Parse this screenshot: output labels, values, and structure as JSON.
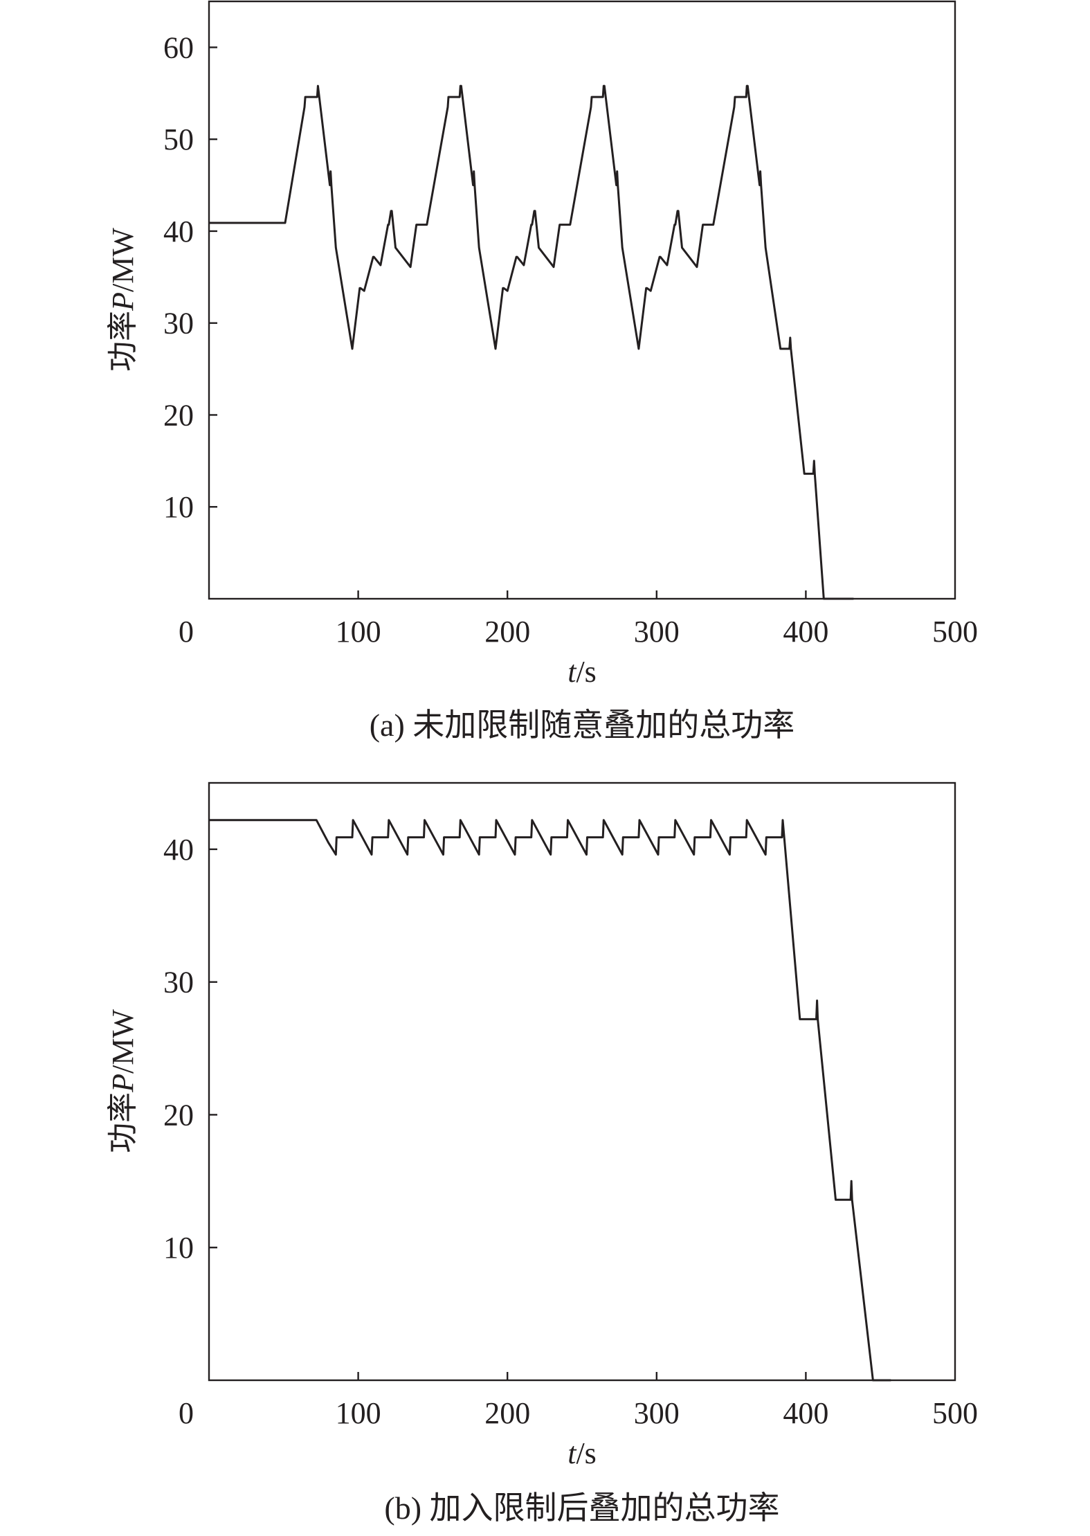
{
  "chart_data": [
    {
      "type": "line",
      "caption": "(a) 未加限制随意叠加的总功率",
      "xlabel_var": "t",
      "xlabel_unit": "/s",
      "ylabel_text": "功率",
      "ylabel_var": "P",
      "ylabel_unit": "/MW",
      "xlim": [
        0,
        500
      ],
      "ylim": [
        0,
        65
      ],
      "xticks": [
        100,
        200,
        300,
        400,
        500
      ],
      "yticks": [
        10,
        20,
        30,
        40,
        50,
        60
      ],
      "origin_label": "0",
      "grid": false,
      "series": [
        {
          "x": [
            0,
            51,
            64,
            64.5,
            72,
            72.5,
            73,
            81,
            81.5,
            82,
            85,
            96,
            101,
            101.5,
            104,
            110,
            110.5,
            115,
            120,
            120.5,
            122,
            122.5,
            125,
            135,
            139,
            139.5,
            146,
            160,
            160.5,
            168,
            168.5,
            169,
            177,
            177.5,
            178,
            181,
            192,
            197,
            197.5,
            200,
            206,
            206.5,
            211,
            216,
            216.5,
            218,
            218.5,
            221,
            231,
            235,
            235.5,
            242,
            256,
            256.5,
            264,
            264.5,
            265,
            273,
            273.5,
            274,
            277,
            288,
            293,
            293.5,
            296,
            302,
            302.5,
            307,
            312,
            312.5,
            314,
            314.5,
            317,
            327,
            331,
            331.5,
            338,
            352,
            352.5,
            360,
            360.5,
            361,
            369,
            369.5,
            370,
            373,
            383,
            389,
            389.5,
            390,
            399,
            405,
            405.5,
            406,
            412,
            422,
            432
          ],
          "y": [
            40.9,
            40.9,
            53.5,
            54.6,
            54.6,
            54.6,
            55.8,
            45,
            46.5,
            45,
            38.2,
            27.2,
            33.8,
            33.8,
            33.5,
            37.2,
            37.2,
            36.3,
            40.7,
            40.7,
            42.2,
            42.2,
            38.2,
            36.1,
            40.7,
            40.7,
            40.7,
            53.5,
            54.6,
            54.6,
            55.8,
            55.8,
            45,
            46.5,
            45,
            38.2,
            27.2,
            33.8,
            33.8,
            33.5,
            37.2,
            37.2,
            36.3,
            40.7,
            40.7,
            42.2,
            42.2,
            38.2,
            36.1,
            40.7,
            40.7,
            40.7,
            53.5,
            54.6,
            54.6,
            55.8,
            55.8,
            45,
            46.5,
            45,
            38.2,
            27.2,
            33.8,
            33.8,
            33.5,
            37.2,
            37.2,
            36.3,
            40.7,
            40.7,
            42.2,
            42.2,
            38.2,
            36.1,
            40.7,
            40.7,
            40.7,
            53.5,
            54.6,
            54.6,
            55.8,
            55.8,
            45,
            46.5,
            45,
            38.2,
            27.2,
            27.2,
            28.4,
            27.2,
            13.6,
            13.6,
            15,
            13.6,
            0,
            0,
            0
          ]
        }
      ]
    },
    {
      "type": "line",
      "caption": "(b) 加入限制后叠加的总功率",
      "xlabel_var": "t",
      "xlabel_unit": "/s",
      "ylabel_text": "功率",
      "ylabel_var": "P",
      "ylabel_unit": "/MW",
      "xlim": [
        0,
        500
      ],
      "ylim": [
        0,
        45
      ],
      "xticks": [
        100,
        200,
        300,
        400,
        500
      ],
      "yticks": [
        10,
        20,
        30,
        40
      ],
      "origin_label": "0",
      "grid": false,
      "series": [
        {
          "x": [
            0,
            72,
            80,
            85,
            85.5,
            96,
            96.5,
            109,
            109.5,
            120,
            120.5,
            133,
            133.5,
            144,
            144.5,
            157,
            157.5,
            168,
            168.5,
            181,
            181.5,
            192,
            192.5,
            205,
            205.5,
            216,
            216.5,
            229,
            229.5,
            240,
            240.5,
            253,
            253.5,
            264,
            264.5,
            277,
            277.5,
            288,
            288.5,
            301,
            301.5,
            312,
            312.5,
            325,
            325.5,
            336,
            336.5,
            349,
            349.5,
            360,
            360.5,
            373,
            373.5,
            384,
            384.5,
            396,
            407,
            407.5,
            408,
            420,
            430,
            430.5,
            431,
            445,
            457
          ],
          "y": [
            42.2,
            42.2,
            40.5,
            39.6,
            40.9,
            40.9,
            42.2,
            39.6,
            40.9,
            40.9,
            42.2,
            39.6,
            40.9,
            40.9,
            42.2,
            39.6,
            40.9,
            40.9,
            42.2,
            39.6,
            40.9,
            40.9,
            42.2,
            39.6,
            40.9,
            40.9,
            42.2,
            39.6,
            40.9,
            40.9,
            42.2,
            39.6,
            40.9,
            40.9,
            42.2,
            39.6,
            40.9,
            40.9,
            42.2,
            39.6,
            40.9,
            40.9,
            42.2,
            39.6,
            40.9,
            40.9,
            42.2,
            39.6,
            40.9,
            40.9,
            42.2,
            39.6,
            40.9,
            40.9,
            42.2,
            27.2,
            27.2,
            28.6,
            27.2,
            13.6,
            13.6,
            15,
            13.6,
            0,
            0
          ]
        }
      ]
    }
  ]
}
